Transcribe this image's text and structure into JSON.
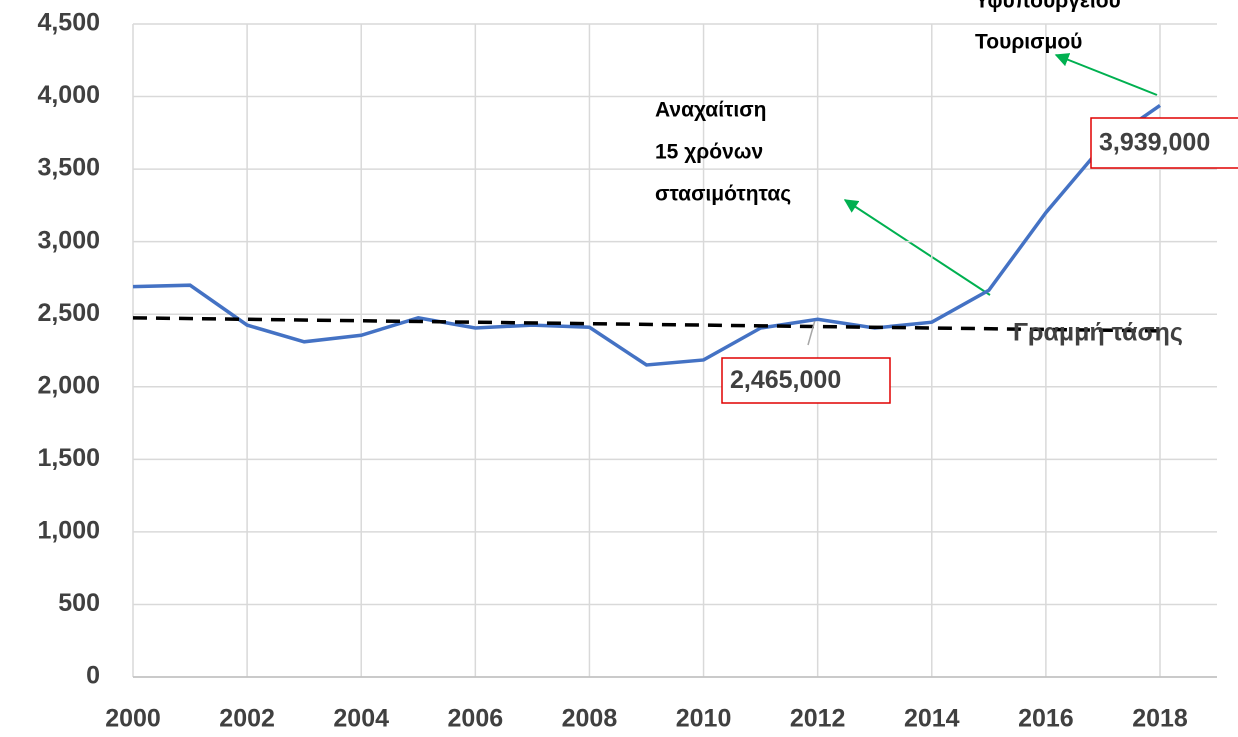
{
  "chart_data": {
    "type": "line",
    "x": [
      2000,
      2001,
      2002,
      2003,
      2004,
      2005,
      2006,
      2007,
      2008,
      2009,
      2010,
      2011,
      2012,
      2013,
      2014,
      2015,
      2016,
      2017,
      2018
    ],
    "series": [
      {
        "color": "#4472c4",
        "values": [
          2690,
          2700,
          2425,
          2310,
          2355,
          2475,
          2405,
          2425,
          2410,
          2150,
          2185,
          2405,
          2465,
          2405,
          2445,
          2665,
          3200,
          3665,
          3939
        ],
        "value_labels": [
          null,
          null,
          null,
          null,
          null,
          null,
          null,
          null,
          null,
          null,
          null,
          null,
          "2,465,000",
          null,
          null,
          null,
          null,
          null,
          "3,939,000"
        ]
      },
      {
        "name": "Γραμμή τάσης",
        "color": "#000000",
        "dash": true,
        "x": [
          2000,
          2018
        ],
        "values": [
          2475,
          2385
        ]
      }
    ],
    "xlim": [
      2000,
      2018
    ],
    "xticks": [
      2000,
      2002,
      2004,
      2006,
      2008,
      2010,
      2012,
      2014,
      2016,
      2018
    ],
    "ylim": [
      0,
      4500
    ],
    "yticks": [
      0,
      {
        "value": 500,
        "label": "500"
      },
      {
        "value": 1000,
        "label": "1,000"
      },
      {
        "value": 1500,
        "label": "1,500"
      },
      {
        "value": 2000,
        "label": "2,000"
      },
      {
        "value": 2500,
        "label": "2,500"
      },
      {
        "value": 3000,
        "label": "3,000"
      },
      {
        "value": 3500,
        "label": "3,500"
      },
      {
        "value": 4000,
        "label": "4,000"
      },
      {
        "value": 4500,
        "label": "4,500"
      }
    ],
    "grid": true,
    "annotations": [
      {
        "lines": [
          "Υφυπουργείου",
          "Τουρισμού"
        ]
      },
      {
        "lines": [
          "Αναχαίτιση",
          "15 χρόνων",
          "στασιμότητας"
        ]
      }
    ]
  }
}
